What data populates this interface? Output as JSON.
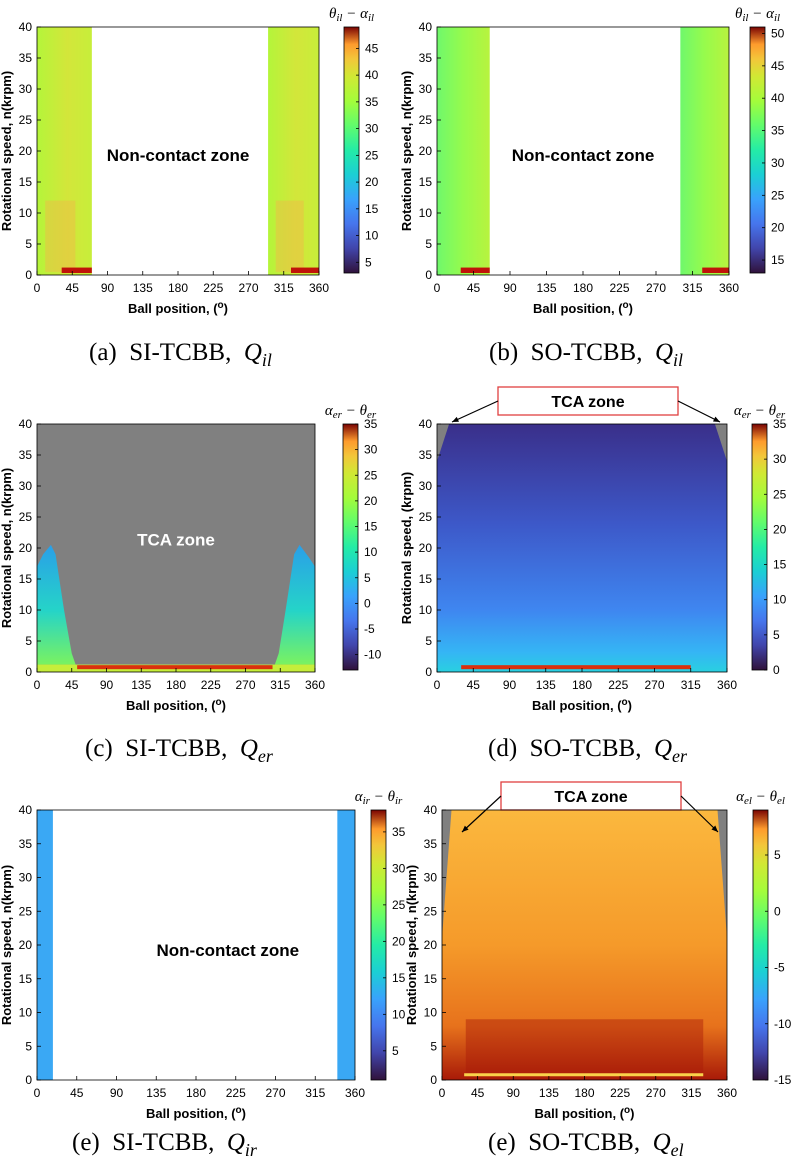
{
  "figure": {
    "panels": [
      {
        "id": "a",
        "caption_prefix": "(a)  SI-TCBB,  ",
        "caption_var": "Q",
        "caption_sub": "il",
        "colorbar_title": "θil − αil",
        "colorbar_ticks": [
          5,
          10,
          15,
          20,
          25,
          30,
          35,
          40,
          45
        ],
        "colorbar_range": [
          3,
          49
        ],
        "zone_label": "Non-contact zone",
        "zone_label_color": "#000000",
        "callout": "",
        "ylabel": "Rotational speed, n(krpm)"
      },
      {
        "id": "b",
        "caption_prefix": "(b)  SO-TCBB,  ",
        "caption_var": "Q",
        "caption_sub": "il",
        "colorbar_title": "θil − αil",
        "colorbar_ticks": [
          15,
          20,
          25,
          30,
          35,
          40,
          45,
          50
        ],
        "colorbar_range": [
          13,
          51
        ],
        "zone_label": "Non-contact zone",
        "zone_label_color": "#000000",
        "callout": "",
        "ylabel": "Rotational speed, n(krpm)"
      },
      {
        "id": "c",
        "caption_prefix": "(c)  SI-TCBB,  ",
        "caption_var": "Q",
        "caption_sub": "er",
        "colorbar_title": "αer − θer",
        "colorbar_ticks": [
          -10,
          -5,
          0,
          5,
          10,
          15,
          20,
          25,
          30,
          35
        ],
        "colorbar_range": [
          -13,
          35
        ],
        "zone_label": "TCA zone",
        "zone_label_color": "#ffffff",
        "callout": "",
        "ylabel": "Rotational speed, n(krpm)"
      },
      {
        "id": "d",
        "caption_prefix": "(d)  SO-TCBB,  ",
        "caption_var": "Q",
        "caption_sub": "er",
        "colorbar_title": "αer − θer",
        "colorbar_ticks": [
          0,
          5,
          10,
          15,
          20,
          25,
          30,
          35
        ],
        "colorbar_range": [
          0,
          35
        ],
        "zone_label": "",
        "zone_label_color": "#000000",
        "callout": "TCA zone",
        "ylabel": "Rotational speed, (krpm)"
      },
      {
        "id": "e1",
        "caption_prefix": "(e)  SI-TCBB,  ",
        "caption_var": "Q",
        "caption_sub": "ir",
        "colorbar_title": "αir − θir",
        "colorbar_ticks": [
          5,
          10,
          15,
          20,
          25,
          30,
          35
        ],
        "colorbar_range": [
          1,
          38
        ],
        "zone_label": "Non-contact zone",
        "zone_label_color": "#000000",
        "callout": "",
        "ylabel": "Rotational speed, n(krpm)"
      },
      {
        "id": "e2",
        "caption_prefix": "(e)  SO-TCBB,  ",
        "caption_var": "Q",
        "caption_sub": "el",
        "colorbar_title": "αel − θel",
        "colorbar_ticks": [
          -15,
          -10,
          -5,
          0,
          5
        ],
        "colorbar_range": [
          -15,
          9
        ],
        "zone_label": "",
        "zone_label_color": "#000000",
        "callout": "TCA zone",
        "ylabel": "Rotational speed, n(krpm)"
      }
    ]
  },
  "chart_data": {
    "type": "heatmap",
    "xlabel": "Ball position, (o)",
    "x_ticks": [
      0,
      45,
      90,
      135,
      180,
      225,
      270,
      315,
      360
    ],
    "xlim": [
      0,
      360
    ],
    "y_ticks": [
      0,
      5,
      10,
      15,
      20,
      25,
      30,
      35,
      40
    ],
    "ylim": [
      0,
      40
    ],
    "colormap": "turbo",
    "panels": [
      {
        "id": "a",
        "contact_ranges_deg": [
          [
            0,
            70
          ],
          [
            295,
            360
          ]
        ],
        "typical_value": 32,
        "peak_value": 48,
        "peak_at_n_krpm": 0.5
      },
      {
        "id": "b",
        "contact_ranges_deg": [
          [
            0,
            65
          ],
          [
            300,
            360
          ]
        ],
        "typical_value": 31,
        "peak_value": 51,
        "peak_at_n_krpm": 0.5
      },
      {
        "id": "c",
        "contact_ranges_deg": [
          [
            0,
            360
          ]
        ],
        "tca_zone_above_n_krpm": 18,
        "low_speed_region_values": [
          0,
          15
        ],
        "peak_value": 34,
        "peak_at_n_krpm": 0.5
      },
      {
        "id": "d",
        "contact_ranges_deg": [
          [
            0,
            360
          ]
        ],
        "tca_zone_corners_deg": [
          [
            0,
            15
          ],
          [
            345,
            360
          ]
        ],
        "typical_value": 2,
        "low_speed_value": 8,
        "peak_value": 35,
        "peak_at_n_krpm": 0.5
      },
      {
        "id": "e1",
        "contact_ranges_deg": [
          [
            0,
            18
          ],
          [
            340,
            360
          ]
        ],
        "typical_value": 11
      },
      {
        "id": "e2",
        "contact_ranges_deg": [
          [
            0,
            360
          ]
        ],
        "tca_zone_wedges_deg": [
          [
            0,
            30
          ],
          [
            330,
            360
          ]
        ],
        "typical_value": 5,
        "low_speed_value": 8
      }
    ]
  }
}
